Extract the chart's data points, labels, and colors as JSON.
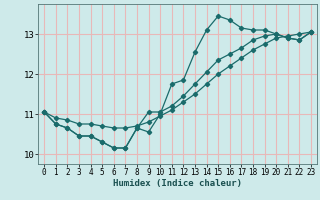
{
  "title": "",
  "xlabel": "Humidex (Indice chaleur)",
  "bg_color": "#ceeaea",
  "grid_color": "#e8b8b8",
  "line_color": "#1a6b6b",
  "xlim": [
    -0.5,
    23.5
  ],
  "ylim": [
    9.75,
    13.75
  ],
  "xticks": [
    0,
    1,
    2,
    3,
    4,
    5,
    6,
    7,
    8,
    9,
    10,
    11,
    12,
    13,
    14,
    15,
    16,
    17,
    18,
    19,
    20,
    21,
    22,
    23
  ],
  "yticks": [
    10,
    11,
    12,
    13
  ],
  "hours": [
    0,
    1,
    2,
    3,
    4,
    5,
    6,
    7,
    8,
    9,
    10,
    11,
    12,
    13,
    14,
    15,
    16,
    17,
    18,
    19,
    20,
    21,
    22,
    23
  ],
  "curve_jagged": [
    11.05,
    10.75,
    10.65,
    10.45,
    10.45,
    10.3,
    10.15,
    10.15,
    10.65,
    10.55,
    11.0,
    11.75,
    11.85,
    12.55,
    13.1,
    13.45,
    13.35,
    13.15,
    13.1,
    13.1,
    13.0,
    12.9,
    12.85,
    13.05
  ],
  "curve_linear": [
    11.05,
    10.9,
    10.85,
    10.75,
    10.75,
    10.7,
    10.65,
    10.65,
    10.7,
    10.8,
    10.95,
    11.1,
    11.3,
    11.5,
    11.75,
    12.0,
    12.2,
    12.4,
    12.6,
    12.75,
    12.9,
    12.95,
    13.0,
    13.05
  ],
  "curve_dip": [
    11.05,
    10.75,
    10.65,
    10.45,
    10.45,
    10.3,
    10.15,
    10.15,
    10.65,
    11.05,
    11.05,
    11.2,
    11.45,
    11.75,
    12.05,
    12.35,
    12.5,
    12.65,
    12.85,
    12.95,
    13.0,
    12.9,
    12.85,
    13.05
  ]
}
